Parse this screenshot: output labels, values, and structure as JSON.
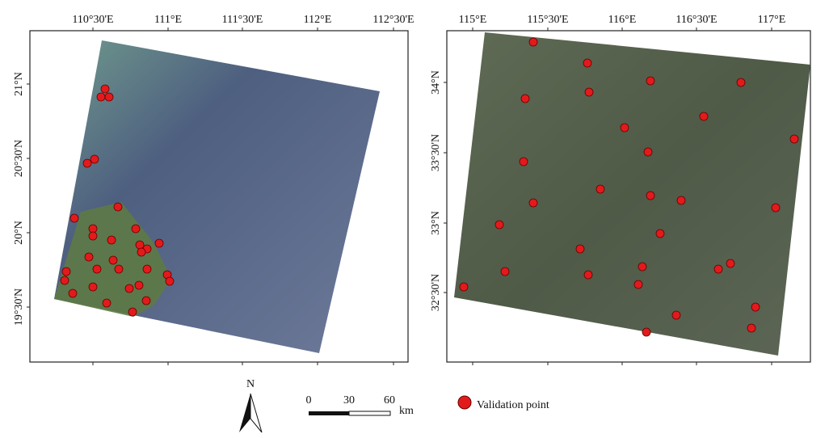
{
  "panels": [
    {
      "x_labels": [
        "110°30'E",
        "111°E",
        "111°30'E",
        "112°E",
        "112°30'E"
      ],
      "y_labels": [
        "21°N",
        "20°30'N",
        "20°N",
        "19°30'N"
      ]
    },
    {
      "x_labels": [
        "115°E",
        "115°30'E",
        "116°E",
        "116°30'E",
        "117°E"
      ],
      "y_labels": [
        "34°N",
        "33°30'N",
        "33°N",
        "32°30'N"
      ]
    }
  ],
  "north_arrow": "N",
  "scale_bar": {
    "labels": [
      0,
      30,
      60
    ],
    "unit": "km"
  },
  "legend": "Validation point"
}
